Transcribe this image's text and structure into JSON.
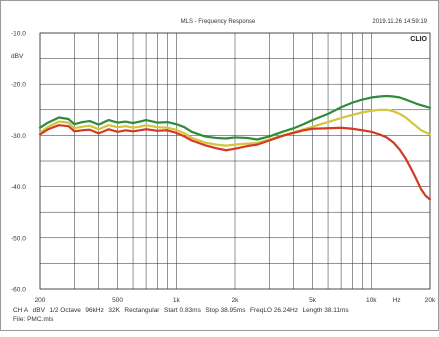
{
  "header": {
    "title": "MLS - Frequency Response",
    "timestamp": "2019.11.26 14:59:19",
    "brand": "CLIO"
  },
  "chart_data": {
    "type": "line",
    "title": "MLS - Frequency Response",
    "xscale": "log",
    "xlim": [
      200,
      20000
    ],
    "ylim": [
      -60,
      -10
    ],
    "y_unit_label": "dBV",
    "grid": true,
    "y_ticks": [
      {
        "value": -10,
        "label": "-10.0"
      },
      {
        "value": -20,
        "label": "-20.0"
      },
      {
        "value": -30,
        "label": "-30.0"
      },
      {
        "value": -40,
        "label": "-40.0"
      },
      {
        "value": -50,
        "label": "-50.0"
      },
      {
        "value": -60,
        "label": "-60.0"
      }
    ],
    "x_ticks": [
      {
        "value": 200,
        "label": "200"
      },
      {
        "value": 500,
        "label": "500"
      },
      {
        "value": 1000,
        "label": "1k"
      },
      {
        "value": 2000,
        "label": "2k"
      },
      {
        "value": 5000,
        "label": "5k"
      },
      {
        "value": 10000,
        "label": "10k"
      },
      {
        "value": 13500,
        "label": "Hz"
      },
      {
        "value": 20000,
        "label": "20k"
      }
    ],
    "x_grid": [
      200,
      300,
      400,
      500,
      600,
      700,
      800,
      900,
      1000,
      2000,
      3000,
      4000,
      5000,
      6000,
      7000,
      8000,
      9000,
      10000,
      20000
    ],
    "y_grid": [
      -10,
      -15,
      -20,
      -25,
      -30,
      -35,
      -40,
      -45,
      -50,
      -55,
      -60
    ],
    "series": [
      {
        "color": "#2e8b3a",
        "points": [
          [
            200,
            -28.5
          ],
          [
            220,
            -27.5
          ],
          [
            250,
            -26.5
          ],
          [
            280,
            -26.8
          ],
          [
            300,
            -27.8
          ],
          [
            330,
            -27.4
          ],
          [
            360,
            -27.2
          ],
          [
            400,
            -27.9
          ],
          [
            450,
            -27.0
          ],
          [
            500,
            -27.5
          ],
          [
            550,
            -27.3
          ],
          [
            600,
            -27.6
          ],
          [
            650,
            -27.3
          ],
          [
            700,
            -27.0
          ],
          [
            800,
            -27.5
          ],
          [
            900,
            -27.4
          ],
          [
            1000,
            -27.8
          ],
          [
            1100,
            -28.4
          ],
          [
            1200,
            -29.3
          ],
          [
            1400,
            -30.2
          ],
          [
            1600,
            -30.5
          ],
          [
            1800,
            -30.6
          ],
          [
            2000,
            -30.4
          ],
          [
            2300,
            -30.5
          ],
          [
            2600,
            -30.8
          ],
          [
            3000,
            -30.2
          ],
          [
            3500,
            -29.3
          ],
          [
            4000,
            -28.6
          ],
          [
            4500,
            -27.8
          ],
          [
            5000,
            -27.0
          ],
          [
            6000,
            -25.8
          ],
          [
            7000,
            -24.5
          ],
          [
            8000,
            -23.6
          ],
          [
            9000,
            -23.0
          ],
          [
            10000,
            -22.6
          ],
          [
            11000,
            -22.4
          ],
          [
            12000,
            -22.3
          ],
          [
            13000,
            -22.4
          ],
          [
            14000,
            -22.6
          ],
          [
            15000,
            -23.0
          ],
          [
            16000,
            -23.4
          ],
          [
            17000,
            -23.8
          ],
          [
            18000,
            -24.1
          ],
          [
            20000,
            -24.6
          ]
        ]
      },
      {
        "color": "#d4c43a",
        "points": [
          [
            200,
            -29.5
          ],
          [
            220,
            -28.3
          ],
          [
            250,
            -27.3
          ],
          [
            280,
            -27.5
          ],
          [
            300,
            -28.6
          ],
          [
            330,
            -28.3
          ],
          [
            360,
            -28.1
          ],
          [
            400,
            -28.8
          ],
          [
            450,
            -28.0
          ],
          [
            500,
            -28.4
          ],
          [
            550,
            -28.2
          ],
          [
            600,
            -28.5
          ],
          [
            650,
            -28.3
          ],
          [
            700,
            -28.0
          ],
          [
            800,
            -28.4
          ],
          [
            900,
            -28.5
          ],
          [
            1000,
            -28.9
          ],
          [
            1100,
            -29.6
          ],
          [
            1200,
            -30.5
          ],
          [
            1400,
            -31.4
          ],
          [
            1600,
            -31.8
          ],
          [
            1800,
            -32.0
          ],
          [
            2000,
            -31.8
          ],
          [
            2300,
            -31.6
          ],
          [
            2600,
            -31.5
          ],
          [
            3000,
            -30.8
          ],
          [
            3500,
            -30.0
          ],
          [
            4000,
            -29.4
          ],
          [
            4500,
            -28.8
          ],
          [
            5000,
            -28.3
          ],
          [
            6000,
            -27.4
          ],
          [
            7000,
            -26.6
          ],
          [
            8000,
            -26.0
          ],
          [
            9000,
            -25.5
          ],
          [
            10000,
            -25.2
          ],
          [
            11000,
            -25.0
          ],
          [
            12000,
            -25.0
          ],
          [
            13000,
            -25.3
          ],
          [
            14000,
            -25.8
          ],
          [
            15000,
            -26.5
          ],
          [
            16000,
            -27.4
          ],
          [
            17000,
            -28.2
          ],
          [
            18000,
            -29.0
          ],
          [
            20000,
            -29.8
          ]
        ]
      },
      {
        "color": "#d23a22",
        "points": [
          [
            200,
            -29.8
          ],
          [
            220,
            -28.8
          ],
          [
            250,
            -28.0
          ],
          [
            280,
            -28.2
          ],
          [
            300,
            -29.2
          ],
          [
            330,
            -29.0
          ],
          [
            360,
            -28.9
          ],
          [
            400,
            -29.6
          ],
          [
            450,
            -28.8
          ],
          [
            500,
            -29.3
          ],
          [
            550,
            -29.0
          ],
          [
            600,
            -29.2
          ],
          [
            650,
            -29.0
          ],
          [
            700,
            -28.8
          ],
          [
            800,
            -29.1
          ],
          [
            900,
            -29.0
          ],
          [
            1000,
            -29.5
          ],
          [
            1100,
            -30.2
          ],
          [
            1200,
            -31.0
          ],
          [
            1400,
            -31.9
          ],
          [
            1600,
            -32.5
          ],
          [
            1800,
            -32.9
          ],
          [
            2000,
            -32.6
          ],
          [
            2300,
            -32.1
          ],
          [
            2600,
            -31.8
          ],
          [
            3000,
            -31.0
          ],
          [
            3500,
            -30.1
          ],
          [
            4000,
            -29.5
          ],
          [
            4500,
            -29.0
          ],
          [
            5000,
            -28.7
          ],
          [
            6000,
            -28.6
          ],
          [
            7000,
            -28.5
          ],
          [
            8000,
            -28.7
          ],
          [
            9000,
            -29.0
          ],
          [
            10000,
            -29.3
          ],
          [
            11000,
            -29.8
          ],
          [
            12000,
            -30.4
          ],
          [
            13000,
            -31.4
          ],
          [
            14000,
            -32.8
          ],
          [
            15000,
            -34.5
          ],
          [
            16000,
            -36.5
          ],
          [
            17000,
            -38.5
          ],
          [
            18000,
            -40.5
          ],
          [
            19000,
            -41.8
          ],
          [
            20000,
            -42.5
          ]
        ]
      }
    ]
  },
  "footer": {
    "settings": [
      {
        "label": "CH A"
      },
      {
        "label": "dBV"
      },
      {
        "label": "1/2 Octave"
      },
      {
        "label": "96kHz"
      },
      {
        "label": "32K"
      },
      {
        "label": "Rectangular"
      },
      {
        "label": "Start 0.83ms"
      },
      {
        "label": "Stop 38.95ms"
      },
      {
        "label": "FreqLO 26.24Hz"
      },
      {
        "label": "Length 38.11ms"
      }
    ],
    "file": "File: PMC.mls"
  }
}
